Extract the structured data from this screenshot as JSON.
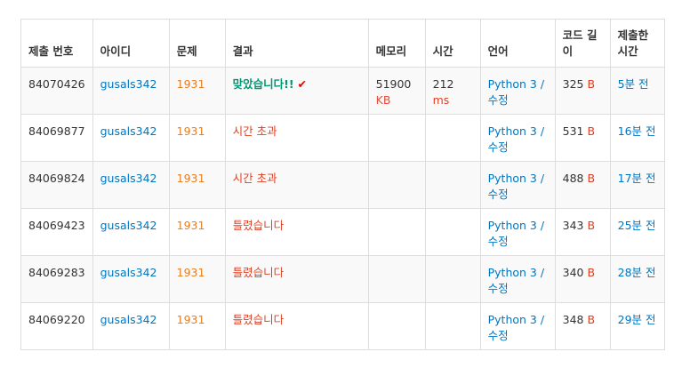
{
  "headers": [
    "제출 번호",
    "아이디",
    "문제",
    "결과",
    "메모리",
    "시간",
    "언어",
    "코드 길이",
    "제출한 시간"
  ],
  "rows": [
    {
      "id": "84070426",
      "user": "gusals342",
      "problem": "1931",
      "result": "맞았습니다!!",
      "result_type": "accepted",
      "memory": "51900",
      "memory_unit": "KB",
      "time": "212",
      "time_unit": "ms",
      "lang": "Python 3",
      "edit": "수정",
      "code_len": "325",
      "code_unit": "B",
      "submitted": "5분 전"
    },
    {
      "id": "84069877",
      "user": "gusals342",
      "problem": "1931",
      "result": "시간 초과",
      "result_type": "tle",
      "memory": "",
      "memory_unit": "",
      "time": "",
      "time_unit": "",
      "lang": "Python 3",
      "edit": "수정",
      "code_len": "531",
      "code_unit": "B",
      "submitted": "16분 전"
    },
    {
      "id": "84069824",
      "user": "gusals342",
      "problem": "1931",
      "result": "시간 초과",
      "result_type": "tle",
      "memory": "",
      "memory_unit": "",
      "time": "",
      "time_unit": "",
      "lang": "Python 3",
      "edit": "수정",
      "code_len": "488",
      "code_unit": "B",
      "submitted": "17분 전"
    },
    {
      "id": "84069423",
      "user": "gusals342",
      "problem": "1931",
      "result": "틀렸습니다",
      "result_type": "wrong",
      "memory": "",
      "memory_unit": "",
      "time": "",
      "time_unit": "",
      "lang": "Python 3",
      "edit": "수정",
      "code_len": "343",
      "code_unit": "B",
      "submitted": "25분 전"
    },
    {
      "id": "84069283",
      "user": "gusals342",
      "problem": "1931",
      "result": "틀렸습니다",
      "result_type": "wrong",
      "memory": "",
      "memory_unit": "",
      "time": "",
      "time_unit": "",
      "lang": "Python 3",
      "edit": "수정",
      "code_len": "340",
      "code_unit": "B",
      "submitted": "28분 전"
    },
    {
      "id": "84069220",
      "user": "gusals342",
      "problem": "1931",
      "result": "틀렸습니다",
      "result_type": "wrong",
      "memory": "",
      "memory_unit": "",
      "time": "",
      "time_unit": "",
      "lang": "Python 3",
      "edit": "수정",
      "code_len": "348",
      "code_unit": "B",
      "submitted": "29분 전"
    }
  ],
  "icons": {
    "accepted": "checkmark-icon"
  },
  "colors": {
    "link": "#0076c0",
    "problem": "#e67e22",
    "accepted": "#009874",
    "wrong": "#dd4124"
  }
}
